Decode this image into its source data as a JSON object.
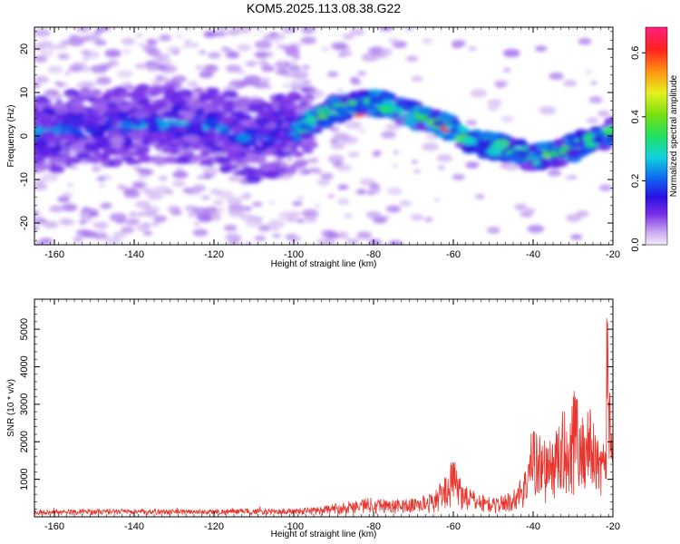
{
  "title": "KOM5.2025.113.08.38.G22",
  "colors": {
    "snr_line": "#e8352e",
    "frame": "#000000"
  },
  "chart_data": [
    {
      "type": "heatmap",
      "title": "KOM5.2025.113.08.38.G22",
      "xlabel": "Height of straight line (km)",
      "ylabel": "Frequency (Hz)",
      "xlim": [
        -165,
        -20
      ],
      "ylim": [
        -25,
        25
      ],
      "xticks": [
        -160,
        -140,
        -120,
        -100,
        -80,
        -60,
        -40,
        -20
      ],
      "yticks": [
        -20,
        -10,
        0,
        10,
        20
      ],
      "colorbar": {
        "label": "Normalized spectral amplitude",
        "range": [
          0,
          0.68
        ],
        "ticks": [
          0.0,
          0.2,
          0.4,
          0.6
        ],
        "colormap": "rainbow"
      },
      "ridge": {
        "description_points_x_km": [
          -165,
          -150,
          -135,
          -120,
          -110,
          -100,
          -90,
          -82,
          -76,
          -70,
          -64,
          -58,
          -52,
          -46,
          -40,
          -34,
          -28,
          -22,
          -20
        ],
        "description_points_freq_hz": [
          1,
          2,
          3,
          2,
          -1,
          1,
          6,
          8,
          7,
          5,
          3,
          0,
          -2,
          -3,
          -5,
          -4,
          -2,
          0,
          1
        ]
      }
    },
    {
      "type": "line",
      "xlabel": "Height of straight line (km)",
      "ylabel": "SNR (10 * v/v)",
      "xlim": [
        -165,
        -20
      ],
      "ylim": [
        0,
        5800
      ],
      "xticks": [
        -160,
        -140,
        -120,
        -100,
        -80,
        -60,
        -40,
        -20
      ],
      "yticks": [
        1000,
        2000,
        3000,
        4000,
        5000
      ],
      "envelope": {
        "x": [
          -165,
          -150,
          -130,
          -110,
          -100,
          -92,
          -85,
          -80,
          -75,
          -70,
          -65,
          -62,
          -60,
          -58,
          -55,
          -50,
          -45,
          -42,
          -40,
          -38,
          -36,
          -34,
          -32,
          -31,
          -30,
          -28,
          -26,
          -24,
          -23,
          -22,
          -21.5,
          -21,
          -20
        ],
        "y": [
          180,
          200,
          200,
          210,
          220,
          300,
          450,
          550,
          450,
          500,
          650,
          1100,
          1600,
          1000,
          700,
          500,
          700,
          1300,
          2600,
          2200,
          2000,
          2400,
          3000,
          2400,
          3900,
          2700,
          3100,
          2200,
          2800,
          1900,
          5700,
          4800,
          2300
        ]
      }
    }
  ]
}
